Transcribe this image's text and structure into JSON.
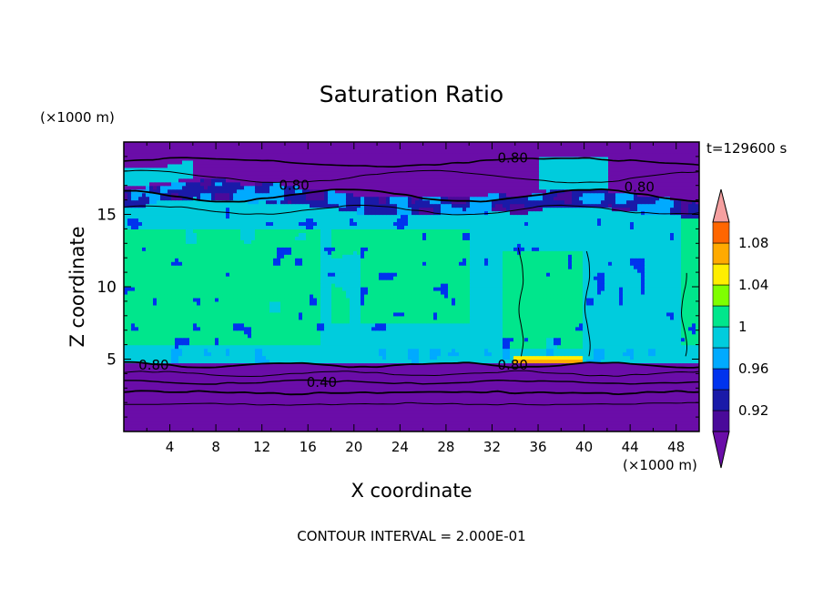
{
  "chart_data": {
    "type": "contour",
    "title": "Saturation Ratio",
    "xlabel": "X coordinate",
    "ylabel": "Z coordinate",
    "x_unit": "(×1000 m)",
    "z_unit": "(×1000 m)",
    "time_label": "t=129600 s",
    "footer": "CONTOUR INTERVAL = 2.000E-01",
    "xlim": [
      0,
      50
    ],
    "ylim": [
      0,
      20
    ],
    "x_ticks": [
      4,
      8,
      12,
      16,
      20,
      24,
      28,
      32,
      36,
      40,
      44,
      48
    ],
    "y_ticks": [
      5,
      10,
      15
    ],
    "colorbar": {
      "labels": [
        "1.08",
        "1.04",
        "1",
        "0.96",
        "0.92"
      ],
      "label_values": [
        1.08,
        1.04,
        1.0,
        0.96,
        0.92
      ],
      "levels": [
        0.9,
        0.92,
        0.94,
        0.96,
        0.98,
        1.0,
        1.02,
        1.04,
        1.06,
        1.08,
        1.1
      ],
      "colors": [
        "#4a0a9a",
        "#1a1aa8",
        "#0033ee",
        "#00aaff",
        "#00ccdd",
        "#00e68c",
        "#7fff00",
        "#ffee00",
        "#ffaa00",
        "#ff6600",
        "#ff2222",
        "#f5a0a0"
      ],
      "under_color": "#6a0da8",
      "over_color": "#f5a0a0"
    },
    "contour_labels": [
      {
        "text": "0.80",
        "x": 33.8,
        "z": 18.9
      },
      {
        "text": "0.80",
        "x": 14.8,
        "z": 17.0
      },
      {
        "text": "0.80",
        "x": 44.8,
        "z": 16.9
      },
      {
        "text": "0.80",
        "x": 2.6,
        "z": 4.6
      },
      {
        "text": "0.80",
        "x": 33.8,
        "z": 4.6
      },
      {
        "text": "0.40",
        "x": 17.2,
        "z": 3.4
      }
    ],
    "regions": {
      "background": 0.85,
      "green_mid": 0.99,
      "yellow_green": 1.01,
      "cyan": 0.97,
      "orange_peak": 1.06,
      "upper_cloud_top": 17.5,
      "main_cloud_top": 15.5,
      "main_cloud_base": 5.0
    }
  }
}
